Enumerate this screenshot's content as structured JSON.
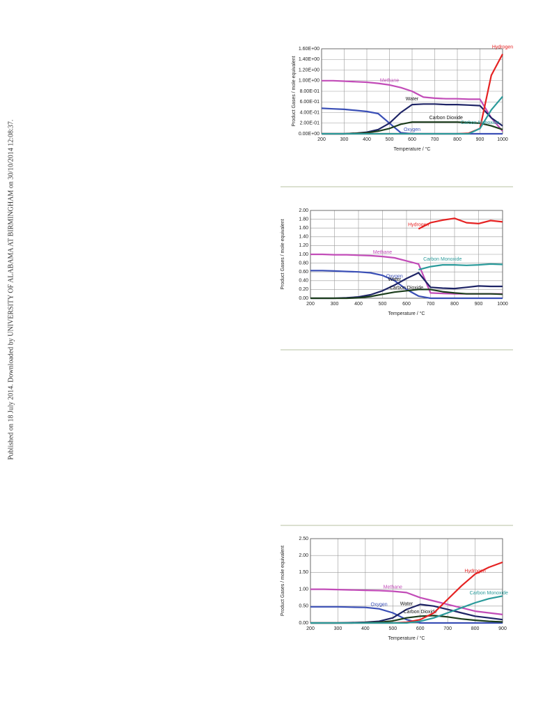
{
  "side_note": "Published on 18 July 2014. Downloaded by UNIVERSITY OF ALABAMA AT BIRMINGHAM on 30/10/2014 12:08:37.",
  "chart_data": [
    {
      "type": "line",
      "x_label": "Temperature  / °C",
      "y_label": "Product Gases / mole equivalent",
      "x": [
        200,
        250,
        300,
        350,
        400,
        450,
        500,
        550,
        600,
        650,
        700,
        750,
        800,
        850,
        900,
        950,
        1000
      ],
      "xlim": [
        200,
        1000
      ],
      "xticks": [
        200,
        300,
        400,
        500,
        600,
        700,
        800,
        900,
        1000
      ],
      "ylim": [
        0,
        1.6
      ],
      "yticks": [
        {
          "value": 0,
          "label": "0.00E+00"
        },
        {
          "value": 0.2,
          "label": "2.00E-01"
        },
        {
          "value": 0.4,
          "label": "4.00E-01"
        },
        {
          "value": 0.6,
          "label": "6.00E-01"
        },
        {
          "value": 0.8,
          "label": "8.00E-01"
        },
        {
          "value": 1,
          "label": "1.00E+00"
        },
        {
          "value": 1.2,
          "label": "1.20E+00"
        },
        {
          "value": 1.4,
          "label": "1.40E+00"
        },
        {
          "value": 1.6,
          "label": "1.60E+00"
        }
      ],
      "grid": true,
      "series": [
        {
          "name": "Methane",
          "color": "#c24cb8",
          "values": [
            1.0,
            1.0,
            0.99,
            0.98,
            0.97,
            0.95,
            0.92,
            0.87,
            0.8,
            0.69,
            0.67,
            0.66,
            0.66,
            0.65,
            0.65,
            0.3,
            0.05
          ]
        },
        {
          "name": "Oxygen",
          "color": "#3a4fb6",
          "values": [
            0.48,
            0.47,
            0.46,
            0.44,
            0.42,
            0.38,
            0.2,
            0.02,
            0,
            0,
            0,
            0,
            0,
            0,
            0,
            0,
            0
          ]
        },
        {
          "name": "Water",
          "color": "#1e2466",
          "values": [
            0,
            0,
            0,
            0.01,
            0.03,
            0.08,
            0.2,
            0.4,
            0.55,
            0.56,
            0.56,
            0.55,
            0.55,
            0.54,
            0.53,
            0.3,
            0.15
          ]
        },
        {
          "name": "Carbon Dioxide",
          "color": "#1c3d1c",
          "values": [
            0,
            0,
            0,
            0.01,
            0.02,
            0.05,
            0.1,
            0.18,
            0.22,
            0.22,
            0.22,
            0.22,
            0.22,
            0.21,
            0.2,
            0.15,
            0.08
          ]
        },
        {
          "name": "Hydrogen",
          "color": "#e52222",
          "values": [
            0,
            0,
            0,
            0,
            0,
            0,
            0,
            0,
            0,
            0,
            0,
            0,
            0,
            0.01,
            0.1,
            1.1,
            1.5
          ]
        },
        {
          "name": "Carbon Monoxide",
          "color": "#2a9a9a",
          "values": [
            0,
            0,
            0,
            0,
            0,
            0,
            0,
            0,
            0,
            0,
            0,
            0,
            0,
            0,
            0.1,
            0.45,
            0.7
          ]
        }
      ]
    },
    {
      "type": "line",
      "x_label": "Temperature  / °C",
      "y_label": "Product Gases / mole equivalent",
      "x": [
        200,
        250,
        300,
        350,
        400,
        450,
        500,
        550,
        600,
        650,
        700,
        750,
        800,
        850,
        900,
        950,
        1000
      ],
      "xlim": [
        200,
        1000
      ],
      "xticks": [
        200,
        300,
        400,
        500,
        600,
        700,
        800,
        900,
        1000
      ],
      "ylim": [
        0,
        2
      ],
      "yticks": [
        {
          "value": 0,
          "label": "0.00"
        },
        {
          "value": 0.2,
          "label": "0.20"
        },
        {
          "value": 0.4,
          "label": "0.40"
        },
        {
          "value": 0.6,
          "label": "0.60"
        },
        {
          "value": 0.8,
          "label": "0.80"
        },
        {
          "value": 1,
          "label": "1.00"
        },
        {
          "value": 1.2,
          "label": "1.20"
        },
        {
          "value": 1.4,
          "label": "1.40"
        },
        {
          "value": 1.6,
          "label": "1.60"
        },
        {
          "value": 1.8,
          "label": "1.80"
        },
        {
          "value": 2,
          "label": "2.00"
        }
      ],
      "grid": true,
      "series": [
        {
          "name": "Methane",
          "color": "#c24cb8",
          "values": [
            1.0,
            1.0,
            0.99,
            0.99,
            0.98,
            0.97,
            0.95,
            0.92,
            0.85,
            0.78,
            0.12,
            0.11,
            0.1,
            0.1,
            0.1,
            0.1,
            0.1
          ]
        },
        {
          "name": "Oxygen",
          "color": "#3a4fb6",
          "values": [
            0.63,
            0.63,
            0.62,
            0.61,
            0.6,
            0.58,
            0.52,
            0.4,
            0.2,
            0.05,
            0,
            0,
            0,
            0,
            0,
            0,
            0
          ]
        },
        {
          "name": "Water",
          "color": "#1e2466",
          "values": [
            0,
            0,
            0,
            0.01,
            0.03,
            0.08,
            0.17,
            0.3,
            0.45,
            0.58,
            0.25,
            0.23,
            0.22,
            0.25,
            0.28,
            0.27,
            0.27
          ]
        },
        {
          "name": "Carbon Dioxide",
          "color": "#1c3d1c",
          "values": [
            0,
            0,
            0,
            0,
            0.01,
            0.04,
            0.09,
            0.14,
            0.17,
            0.2,
            0.2,
            0.15,
            0.12,
            0.1,
            0.1,
            0.1,
            0.09
          ]
        },
        {
          "name": "Hydrogen",
          "color": "#e52222",
          "values": [
            null,
            null,
            null,
            null,
            null,
            null,
            null,
            null,
            null,
            1.58,
            1.72,
            1.78,
            1.82,
            1.72,
            1.7,
            1.77,
            1.74
          ]
        },
        {
          "name": "Carbon Monoxide",
          "color": "#2a9a9a",
          "values": [
            null,
            null,
            null,
            null,
            null,
            null,
            null,
            null,
            null,
            0.65,
            0.72,
            0.76,
            0.76,
            0.75,
            0.76,
            0.78,
            0.77
          ]
        }
      ]
    },
    {
      "type": "line",
      "x_label": "Temperature  / °C",
      "y_label": "Product Gases / mole equivalent",
      "x": [
        200,
        250,
        300,
        350,
        400,
        450,
        500,
        550,
        600,
        650,
        700,
        750,
        800,
        850,
        900
      ],
      "xlim": [
        200,
        900
      ],
      "xticks": [
        200,
        300,
        400,
        500,
        600,
        700,
        800,
        900
      ],
      "ylim": [
        0,
        2.5
      ],
      "yticks": [
        {
          "value": 0,
          "label": "0.00"
        },
        {
          "value": 0.5,
          "label": "0.50"
        },
        {
          "value": 1,
          "label": "1.00"
        },
        {
          "value": 1.5,
          "label": "1.50"
        },
        {
          "value": 2,
          "label": "2.00"
        },
        {
          "value": 2.5,
          "label": "2.50"
        }
      ],
      "grid": true,
      "series": [
        {
          "name": "Methane",
          "color": "#c24cb8",
          "values": [
            1.0,
            1.0,
            0.99,
            0.98,
            0.97,
            0.96,
            0.94,
            0.9,
            0.75,
            0.65,
            0.55,
            0.45,
            0.35,
            0.3,
            0.25
          ]
        },
        {
          "name": "Oxygen",
          "color": "#3a4fb6",
          "values": [
            0.48,
            0.48,
            0.48,
            0.47,
            0.46,
            0.42,
            0.3,
            0.1,
            0,
            0,
            0,
            0,
            0,
            0,
            0
          ]
        },
        {
          "name": "Water",
          "color": "#1e2466",
          "values": [
            0,
            0,
            0,
            0.01,
            0.02,
            0.05,
            0.15,
            0.4,
            0.55,
            0.5,
            0.4,
            0.3,
            0.2,
            0.15,
            0.1
          ]
        },
        {
          "name": "Carbon Dioxide",
          "color": "#1c3d1c",
          "values": [
            0,
            0,
            0,
            0,
            0.01,
            0.02,
            0.06,
            0.15,
            0.2,
            0.22,
            0.18,
            0.12,
            0.08,
            0.05,
            0.03
          ]
        },
        {
          "name": "Hydrogen",
          "color": "#e52222",
          "values": [
            0,
            0,
            0,
            0,
            0,
            0,
            0,
            0.02,
            0.1,
            0.3,
            0.7,
            1.1,
            1.45,
            1.65,
            1.8
          ]
        },
        {
          "name": "Carbon Monoxide",
          "color": "#2a9a9a",
          "values": [
            0,
            0,
            0,
            0,
            0,
            0,
            0,
            0,
            0.05,
            0.15,
            0.3,
            0.45,
            0.6,
            0.72,
            0.8
          ]
        }
      ]
    }
  ]
}
